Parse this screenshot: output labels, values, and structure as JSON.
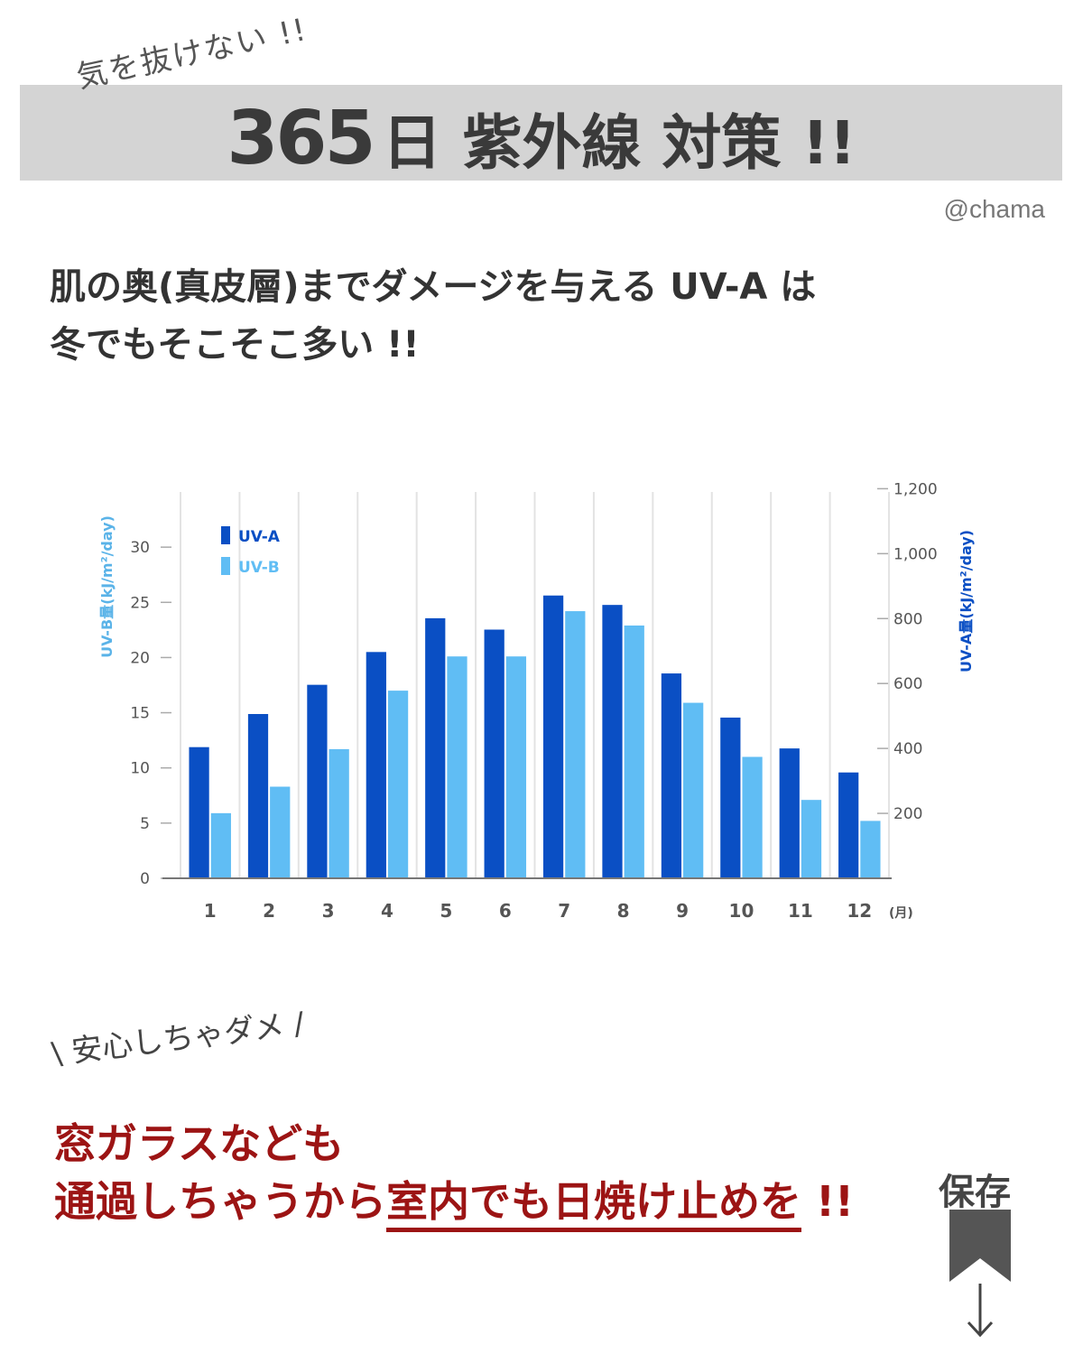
{
  "header": {
    "kicker": "気を抜けない !!",
    "title_number": "365",
    "title_rest": "日 紫外線 対策 !!",
    "credit": "@chama"
  },
  "headline": {
    "line1": "肌の奥(真皮層)までダメージを与える UV-A は",
    "line2": "冬でもそこそこ多い !!"
  },
  "chart_data": {
    "type": "bar",
    "categories": [
      "1",
      "2",
      "3",
      "4",
      "5",
      "6",
      "7",
      "8",
      "9",
      "10",
      "11",
      "12"
    ],
    "x_unit": "(月)",
    "series": [
      {
        "name": "UV-A",
        "axis": "right",
        "color": "#0a4fc4",
        "values": [
          404,
          506,
          596,
          697,
          801,
          766,
          871,
          842,
          631,
          495,
          400,
          326
        ]
      },
      {
        "name": "UV-B",
        "axis": "left",
        "color": "#60bdf4",
        "values": [
          5.9,
          8.3,
          11.7,
          17.0,
          20.1,
          20.1,
          24.2,
          22.9,
          15.9,
          11.0,
          7.1,
          5.2
        ]
      }
    ],
    "y_left": {
      "label": "UV-B量(kJ/m²/day)",
      "ticks": [
        "0",
        "5",
        "10",
        "15",
        "20",
        "25",
        "30"
      ],
      "range": [
        0,
        35
      ],
      "color": "#5ab3e8"
    },
    "y_right": {
      "label": "UV-A量(kJ/m²/day)",
      "ticks": [
        "200",
        "400",
        "600",
        "800",
        "1,000",
        "1,200"
      ],
      "range": [
        0,
        1190
      ],
      "color": "#0a4fc4"
    },
    "legend_position": "top-left",
    "grid": "vertical"
  },
  "note": {
    "warning": "\\ 安心しちゃダメ /",
    "message_line1": "窓ガラスなども",
    "message_line2_plain": "通過しちゃうから",
    "message_line2_underlined": "室内でも日焼け止めを",
    "message_line2_end": " !!"
  },
  "save": {
    "label": "保存",
    "icons": [
      "bookmark-icon",
      "down-arrow-icon"
    ]
  }
}
